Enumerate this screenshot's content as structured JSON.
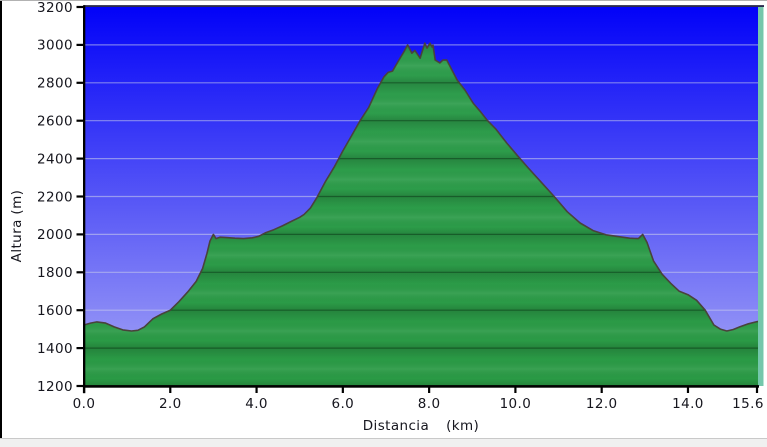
{
  "window": {
    "background": "#ffffff",
    "left_border_color": "#000000",
    "top_border_color": "#b2b2b2",
    "statusbar_color": "#f0f0f0"
  },
  "chart_data": {
    "type": "area",
    "xlabel": "Distancia",
    "xlabel_unit": "(km)",
    "ylabel": "Altura (m)",
    "xlim": [
      0,
      15.6
    ],
    "ylim": [
      1200,
      3200
    ],
    "grid": "horizontal",
    "legend": "none",
    "x_ticks": [
      0.0,
      2.0,
      4.0,
      6.0,
      8.0,
      10.0,
      12.0,
      14.0,
      15.6
    ],
    "x_tick_labels": [
      "0.0",
      "2.0",
      "4.0",
      "6.0",
      "8.0",
      "10.0",
      "12.0",
      "14.0",
      "15.6"
    ],
    "y_ticks": [
      1200,
      1400,
      1600,
      1800,
      2000,
      2200,
      2400,
      2600,
      2800,
      3000,
      3200
    ],
    "y_tick_labels": [
      "1200",
      "1400",
      "1600",
      "1800",
      "2000",
      "2200",
      "2400",
      "2600",
      "2800",
      "3000",
      "3200"
    ],
    "colors": {
      "sky_top": "#0202f8",
      "sky_bottom": "#a8a8f5",
      "area_green_top": "#2f9e4e",
      "area_green_bottom": "#2a9a45",
      "outline": "#49433b",
      "axis": "#000000",
      "tick_label": "#16161e",
      "grid_light": "rgba(205,210,235,0.55)",
      "grid_dark": "rgba(0,25,8,0.38)",
      "right_edge_strip": "#74c7ab",
      "plot_top_border": "#14143c"
    },
    "series": [
      {
        "name": "altura",
        "x": [
          0,
          0.15,
          0.3,
          0.5,
          0.7,
          0.9,
          1.1,
          1.25,
          1.4,
          1.6,
          1.8,
          2.0,
          2.2,
          2.4,
          2.6,
          2.75,
          2.85,
          2.92,
          3.0,
          3.06,
          3.15,
          3.3,
          3.5,
          3.7,
          3.9,
          4.05,
          4.2,
          4.4,
          4.6,
          4.8,
          5.0,
          5.1,
          5.25,
          5.4,
          5.6,
          5.8,
          6.0,
          6.2,
          6.4,
          6.6,
          6.8,
          6.95,
          7.05,
          7.15,
          7.3,
          7.42,
          7.5,
          7.6,
          7.67,
          7.79,
          7.9,
          7.95,
          8.02,
          8.07,
          8.09,
          8.14,
          8.25,
          8.32,
          8.41,
          8.53,
          8.65,
          8.83,
          9.02,
          9.2,
          9.34,
          9.55,
          9.8,
          10.05,
          10.3,
          10.6,
          10.9,
          11.2,
          11.5,
          11.8,
          12.1,
          12.4,
          12.65,
          12.85,
          12.95,
          13.05,
          13.2,
          13.4,
          13.6,
          13.8,
          14.0,
          14.2,
          14.4,
          14.6,
          14.75,
          14.9,
          15.05,
          15.2,
          15.4,
          15.6
        ],
        "y": [
          1522,
          1532,
          1538,
          1532,
          1512,
          1496,
          1490,
          1494,
          1512,
          1555,
          1580,
          1600,
          1645,
          1695,
          1752,
          1820,
          1900,
          1965,
          2000,
          1978,
          1985,
          1983,
          1980,
          1978,
          1982,
          1990,
          2008,
          2025,
          2045,
          2068,
          2090,
          2105,
          2140,
          2195,
          2280,
          2355,
          2440,
          2520,
          2600,
          2670,
          2770,
          2830,
          2855,
          2862,
          2920,
          2965,
          3000,
          2956,
          2971,
          2930,
          3009,
          2983,
          3009,
          2989,
          2999,
          2920,
          2905,
          2920,
          2920,
          2867,
          2814,
          2762,
          2693,
          2645,
          2604,
          2555,
          2482,
          2415,
          2350,
          2275,
          2200,
          2120,
          2060,
          2020,
          1998,
          1988,
          1980,
          1978,
          2000,
          1958,
          1860,
          1790,
          1742,
          1700,
          1682,
          1652,
          1600,
          1522,
          1500,
          1490,
          1498,
          1512,
          1528,
          1540
        ]
      }
    ]
  }
}
